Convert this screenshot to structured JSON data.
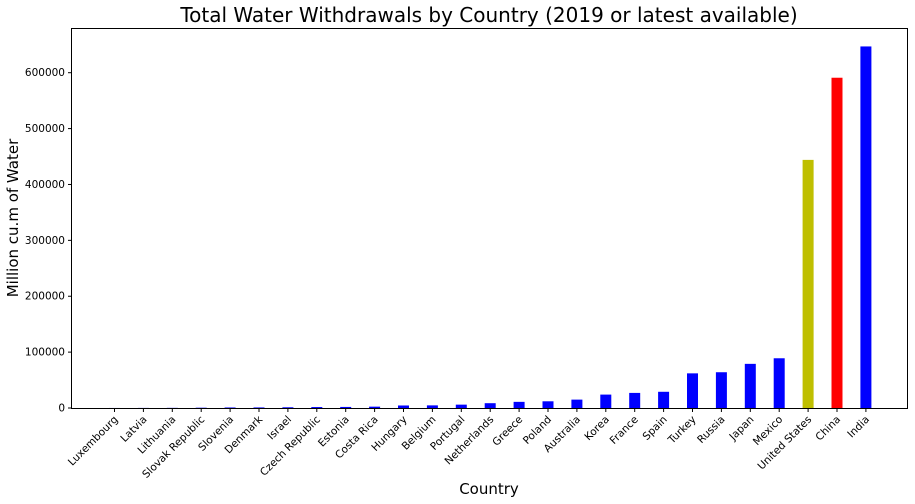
{
  "chart_data": {
    "type": "bar",
    "title": "Total Water Withdrawals by Country (2019 or latest available)",
    "xlabel": "Country",
    "ylabel": "Million cu.m of Water",
    "ylim": [
      0,
      680000
    ],
    "yticks": [
      0,
      100000,
      200000,
      300000,
      400000,
      500000,
      600000
    ],
    "ytick_labels": [
      "0",
      "100000",
      "200000",
      "300000",
      "400000",
      "500000",
      "600000"
    ],
    "grid": false,
    "categories": [
      "Luxembourg",
      "Latvia",
      "Lithuania",
      "Slovak Republic",
      "Slovenia",
      "Denmark",
      "Israel",
      "Czech Republic",
      "Estonia",
      "Costa Rica",
      "Hungary",
      "Belgium",
      "Portugal",
      "Netherlands",
      "Greece",
      "Poland",
      "Australia",
      "Korea",
      "France",
      "Spain",
      "Turkey",
      "Russia",
      "Japan",
      "Mexico",
      "United States",
      "China",
      "India"
    ],
    "values": [
      60,
      150,
      250,
      520,
      930,
      1000,
      1300,
      1700,
      1900,
      2400,
      4500,
      4700,
      6000,
      8600,
      11000,
      12000,
      15000,
      24000,
      27000,
      29000,
      62000,
      64000,
      79000,
      89000,
      444000,
      591000,
      647000
    ],
    "colors": [
      "#0000ff",
      "#0000ff",
      "#0000ff",
      "#0000ff",
      "#0000ff",
      "#0000ff",
      "#0000ff",
      "#0000ff",
      "#0000ff",
      "#0000ff",
      "#0000ff",
      "#0000ff",
      "#0000ff",
      "#0000ff",
      "#0000ff",
      "#0000ff",
      "#0000ff",
      "#0000ff",
      "#0000ff",
      "#0000ff",
      "#0000ff",
      "#0000ff",
      "#0000ff",
      "#0000ff",
      "#bfbf00",
      "#ff0000",
      "#0000ff"
    ]
  }
}
